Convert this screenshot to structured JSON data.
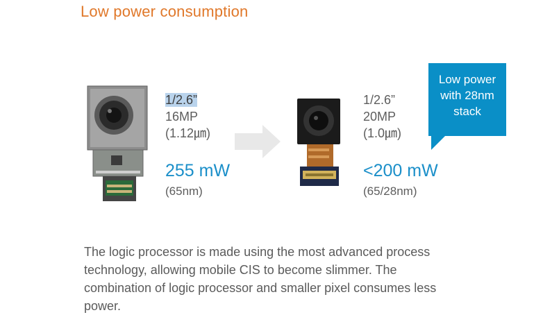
{
  "title": "Low power consumption",
  "left_spec": {
    "size": "1/2.6”",
    "resolution": "16MP",
    "pixel": "(1.12㎛)",
    "power": "255 mW",
    "node": "(65nm)"
  },
  "right_spec": {
    "size": "1/2.6”",
    "resolution": "20MP",
    "pixel": "(1.0㎛)",
    "power": "<200 mW",
    "node": "(65/28nm)"
  },
  "callout": {
    "line1": "Low power",
    "line2": "with 28nm",
    "line3": "stack"
  },
  "description": {
    "line1": "The logic processor is made using the most advanced process",
    "line2": "technology, allowing mobile CIS to become slimmer. The",
    "line3": "combination of logic processor and smaller pixel consumes less",
    "line4": "power."
  },
  "colors": {
    "title": "#e0782a",
    "power": "#1b8fc9",
    "callout": "#0a8fc7",
    "highlight": "#b9d3ec"
  }
}
